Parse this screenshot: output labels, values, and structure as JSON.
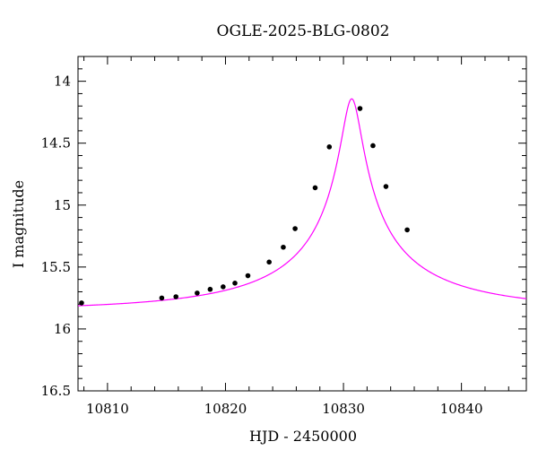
{
  "chart_data": {
    "type": "scatter",
    "title": "OGLE-2025-BLG-0802",
    "xlabel": "HJD - 2450000",
    "ylabel": "I magnitude",
    "xlim": [
      10807.5,
      10845.5
    ],
    "ylim": [
      16.5,
      13.8
    ],
    "y_inverted": true,
    "grid": false,
    "x_ticks": [
      10810,
      10820,
      10830,
      10840
    ],
    "y_ticks": [
      14,
      14.5,
      15,
      15.5,
      16,
      16.5
    ],
    "x_tick_labels": [
      "10810",
      "10820",
      "10830",
      "10840"
    ],
    "y_tick_labels": [
      "14",
      "14.5",
      "15",
      "15.5",
      "16",
      "16.5"
    ],
    "series": [
      {
        "kind": "points",
        "color": "#000000",
        "x": [
          10807.8,
          10814.6,
          10815.8,
          10817.6,
          10818.7,
          10819.8,
          10820.8,
          10821.9,
          10823.7,
          10824.9,
          10825.9,
          10827.6,
          10828.8,
          10831.4,
          10832.5,
          10833.6,
          10835.4
        ],
        "y": [
          15.79,
          15.75,
          15.74,
          15.71,
          15.68,
          15.66,
          15.63,
          15.57,
          15.46,
          15.34,
          15.19,
          14.86,
          14.53,
          14.22,
          14.52,
          14.85,
          15.2
        ]
      },
      {
        "kind": "model",
        "color": "#ff00ff",
        "model": {
          "t0": 10830.7,
          "tE": 18.0,
          "u0": 0.045,
          "baseline": 15.85,
          "blend_fraction": 0.18
        }
      }
    ]
  }
}
